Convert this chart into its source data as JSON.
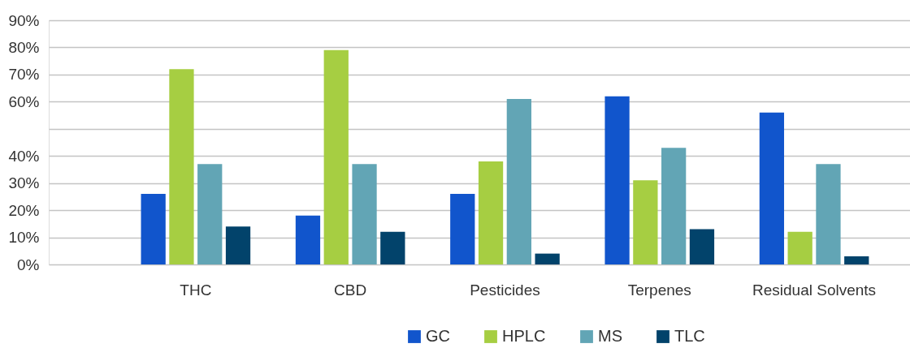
{
  "chart_data": {
    "type": "bar",
    "categories": [
      "THC",
      "CBD",
      "Pesticides",
      "Terpenes",
      "Residual Solvents"
    ],
    "series": [
      {
        "name": "GC",
        "color": "#1155cc",
        "values": [
          26,
          18,
          26,
          62,
          56
        ]
      },
      {
        "name": "HPLC",
        "color": "#a6ce42",
        "values": [
          72,
          79,
          38,
          31,
          12
        ]
      },
      {
        "name": "MS",
        "color": "#62a5b5",
        "values": [
          37,
          37,
          61,
          43,
          37
        ]
      },
      {
        "name": "TLC",
        "color": "#02436b",
        "values": [
          14,
          12,
          4,
          13,
          3
        ]
      }
    ],
    "ylim": [
      0,
      90
    ],
    "yticks": [
      {
        "value": 0,
        "label": "0%"
      },
      {
        "value": 10,
        "label": "10%"
      },
      {
        "value": 20,
        "label": "20%"
      },
      {
        "value": 30,
        "label": "30%"
      },
      {
        "value": 40,
        "label": "40%"
      },
      {
        "value": 50,
        "label": null
      },
      {
        "value": 60,
        "label": "60%"
      },
      {
        "value": 70,
        "label": "70%"
      },
      {
        "value": 80,
        "label": "80%"
      },
      {
        "value": 90,
        "label": "90%"
      }
    ],
    "grid": "y",
    "legend": "bottom"
  }
}
